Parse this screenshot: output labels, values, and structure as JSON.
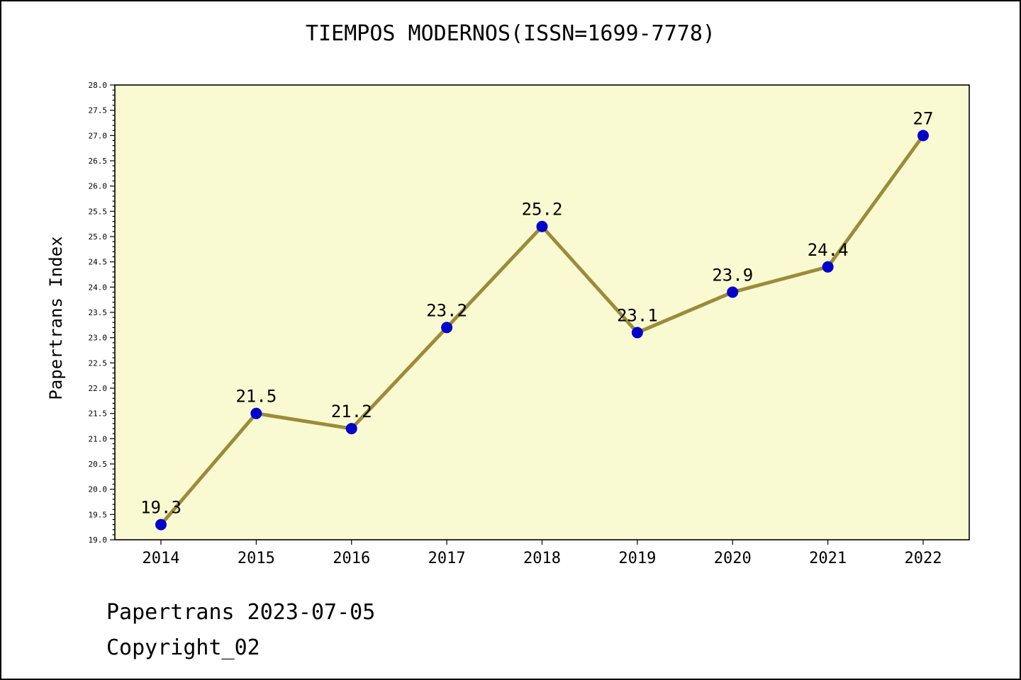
{
  "title": "TIEMPOS MODERNOS(ISSN=1699-7778)",
  "footer": {
    "line1": "Papertrans 2023-07-05",
    "line2": "Copyright_02"
  },
  "chart_data": {
    "type": "line",
    "title": "TIEMPOS MODERNOS(ISSN=1699-7778)",
    "xlabel": "",
    "ylabel": "Papertrans Index",
    "categories": [
      "2014",
      "2015",
      "2016",
      "2017",
      "2018",
      "2019",
      "2020",
      "2021",
      "2022"
    ],
    "values": [
      19.3,
      21.5,
      21.2,
      23.2,
      25.2,
      23.1,
      23.9,
      24.4,
      27
    ],
    "point_labels": [
      "19.3",
      "21.5",
      "21.2",
      "23.2",
      "25.2",
      "23.1",
      "23.9",
      "24.4",
      "27"
    ],
    "ylim": [
      19.0,
      28.0
    ],
    "ytick_step": 0.5,
    "ytick_minor_step": 0.1,
    "grid": false,
    "legend": "none",
    "colors": {
      "line": "#9C8B3A",
      "marker": "#0000CD",
      "plot_bg": "#FAFAD2",
      "axis": "#000000",
      "text": "#000000"
    }
  }
}
